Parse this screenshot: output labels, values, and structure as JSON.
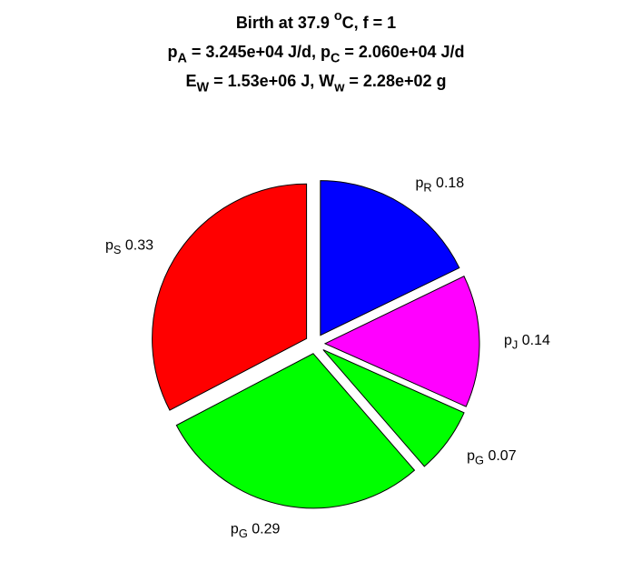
{
  "chart_data": {
    "type": "pie",
    "title": [
      [
        {
          "text": "Birth at 37.9 "
        },
        {
          "text": "o",
          "shift": "sup"
        },
        {
          "text": "C, f = 1"
        }
      ],
      [
        {
          "text": "p"
        },
        {
          "text": "A",
          "shift": "sub"
        },
        {
          "text": " = 3.245e+04 J/d, p"
        },
        {
          "text": "C",
          "shift": "sub"
        },
        {
          "text": " = 2.060e+04 J/d"
        }
      ],
      [
        {
          "text": "E"
        },
        {
          "text": "W",
          "shift": "sub"
        },
        {
          "text": " = 1.53e+06 J, W"
        },
        {
          "text": "w",
          "shift": "sub"
        },
        {
          "text": " = 2.28e+02 g"
        }
      ]
    ],
    "categories": [
      [
        {
          "text": "p"
        },
        {
          "text": "R",
          "shift": "sub"
        }
      ],
      [
        {
          "text": "p"
        },
        {
          "text": "J",
          "shift": "sub"
        }
      ],
      [
        {
          "text": "p"
        },
        {
          "text": "G",
          "shift": "sub"
        }
      ],
      [
        {
          "text": "p"
        },
        {
          "text": "G",
          "shift": "sub"
        }
      ],
      [
        {
          "text": "p"
        },
        {
          "text": "S",
          "shift": "sub"
        }
      ]
    ],
    "values": [
      0.18,
      0.14,
      0.07,
      0.29,
      0.33
    ],
    "colors": [
      "#0000ff",
      "#ff00ff",
      "#00ff00",
      "#00ff00",
      "#ff0000"
    ],
    "explode": true
  }
}
